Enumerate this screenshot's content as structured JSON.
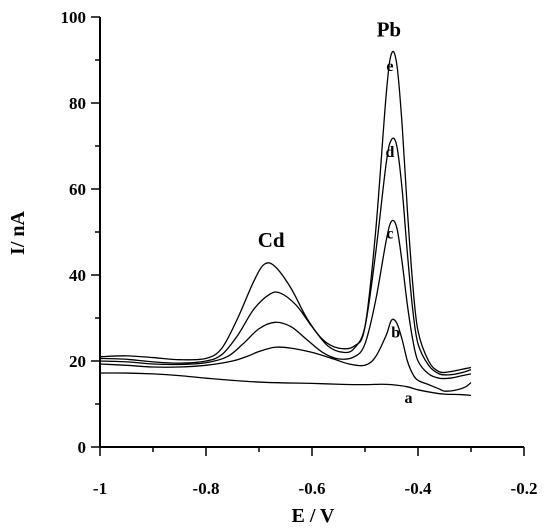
{
  "chart_data": {
    "type": "line",
    "title": "",
    "xlabel": "E / V",
    "ylabel": "I/ nA",
    "xlim": [
      -1.0,
      -0.2
    ],
    "ylim": [
      0,
      100
    ],
    "x_ticks": [
      -1.0,
      -0.8,
      -0.6,
      -0.4,
      -0.2
    ],
    "x_tick_labels": [
      "-1",
      "-0.8",
      "-0.6",
      "-0.4",
      "-0.2"
    ],
    "y_ticks": [
      0,
      20,
      40,
      60,
      80,
      100
    ],
    "y_tick_labels": [
      "0",
      "20",
      "40",
      "60",
      "80",
      "100"
    ],
    "grid": false,
    "series": [
      {
        "name": "a",
        "points": [
          [
            -1.0,
            17.2
          ],
          [
            -0.95,
            17.2
          ],
          [
            -0.9,
            17.0
          ],
          [
            -0.85,
            16.6
          ],
          [
            -0.8,
            16.0
          ],
          [
            -0.75,
            15.5
          ],
          [
            -0.7,
            15.1
          ],
          [
            -0.65,
            14.9
          ],
          [
            -0.6,
            14.8
          ],
          [
            -0.55,
            14.6
          ],
          [
            -0.5,
            14.5
          ],
          [
            -0.47,
            14.6
          ],
          [
            -0.45,
            14.5
          ],
          [
            -0.42,
            14.0
          ],
          [
            -0.4,
            13.3
          ],
          [
            -0.37,
            12.6
          ],
          [
            -0.35,
            12.3
          ],
          [
            -0.32,
            12.2
          ],
          [
            -0.3,
            12.0
          ]
        ]
      },
      {
        "name": "b",
        "points": [
          [
            -1.0,
            19.3
          ],
          [
            -0.95,
            19.0
          ],
          [
            -0.9,
            18.6
          ],
          [
            -0.85,
            18.6
          ],
          [
            -0.8,
            19.0
          ],
          [
            -0.75,
            20.0
          ],
          [
            -0.72,
            21.2
          ],
          [
            -0.7,
            22.2
          ],
          [
            -0.67,
            23.2
          ],
          [
            -0.64,
            23.0
          ],
          [
            -0.6,
            22.0
          ],
          [
            -0.56,
            20.5
          ],
          [
            -0.53,
            19.3
          ],
          [
            -0.5,
            19.0
          ],
          [
            -0.48,
            21.0
          ],
          [
            -0.46,
            26.0
          ],
          [
            -0.45,
            29.5
          ],
          [
            -0.44,
            28.8
          ],
          [
            -0.43,
            25.0
          ],
          [
            -0.42,
            20.0
          ],
          [
            -0.41,
            17.0
          ],
          [
            -0.4,
            15.5
          ],
          [
            -0.38,
            14.5
          ],
          [
            -0.36,
            13.5
          ],
          [
            -0.35,
            13.0
          ],
          [
            -0.33,
            13.2
          ],
          [
            -0.31,
            14.0
          ],
          [
            -0.3,
            15.0
          ]
        ]
      },
      {
        "name": "c",
        "points": [
          [
            -1.0,
            20.0
          ],
          [
            -0.95,
            19.8
          ],
          [
            -0.9,
            19.3
          ],
          [
            -0.85,
            19.2
          ],
          [
            -0.8,
            19.6
          ],
          [
            -0.76,
            21.0
          ],
          [
            -0.73,
            24.0
          ],
          [
            -0.7,
            27.5
          ],
          [
            -0.67,
            29.0
          ],
          [
            -0.64,
            28.0
          ],
          [
            -0.61,
            25.0
          ],
          [
            -0.58,
            22.0
          ],
          [
            -0.55,
            20.5
          ],
          [
            -0.52,
            21.0
          ],
          [
            -0.5,
            24.0
          ],
          [
            -0.48,
            34.0
          ],
          [
            -0.46,
            48.0
          ],
          [
            -0.45,
            52.5
          ],
          [
            -0.44,
            51.0
          ],
          [
            -0.43,
            43.0
          ],
          [
            -0.42,
            33.0
          ],
          [
            -0.41,
            25.0
          ],
          [
            -0.4,
            20.0
          ],
          [
            -0.38,
            17.0
          ],
          [
            -0.36,
            16.0
          ],
          [
            -0.34,
            16.0
          ],
          [
            -0.32,
            16.5
          ],
          [
            -0.3,
            17.0
          ]
        ]
      },
      {
        "name": "d",
        "points": [
          [
            -1.0,
            20.6
          ],
          [
            -0.95,
            20.4
          ],
          [
            -0.9,
            19.8
          ],
          [
            -0.85,
            19.5
          ],
          [
            -0.8,
            20.0
          ],
          [
            -0.77,
            21.5
          ],
          [
            -0.74,
            26.0
          ],
          [
            -0.71,
            32.0
          ],
          [
            -0.68,
            35.5
          ],
          [
            -0.66,
            35.8
          ],
          [
            -0.63,
            33.0
          ],
          [
            -0.6,
            28.0
          ],
          [
            -0.57,
            23.5
          ],
          [
            -0.54,
            22.0
          ],
          [
            -0.52,
            23.0
          ],
          [
            -0.5,
            28.0
          ],
          [
            -0.48,
            45.0
          ],
          [
            -0.46,
            66.0
          ],
          [
            -0.45,
            71.5
          ],
          [
            -0.44,
            70.0
          ],
          [
            -0.43,
            60.0
          ],
          [
            -0.42,
            45.0
          ],
          [
            -0.41,
            32.0
          ],
          [
            -0.4,
            24.0
          ],
          [
            -0.38,
            19.0
          ],
          [
            -0.36,
            17.0
          ],
          [
            -0.34,
            16.8
          ],
          [
            -0.32,
            17.2
          ],
          [
            -0.3,
            18.0
          ]
        ]
      },
      {
        "name": "e",
        "points": [
          [
            -1.0,
            21.0
          ],
          [
            -0.95,
            21.2
          ],
          [
            -0.9,
            20.8
          ],
          [
            -0.85,
            20.3
          ],
          [
            -0.8,
            20.6
          ],
          [
            -0.77,
            23.0
          ],
          [
            -0.74,
            30.0
          ],
          [
            -0.71,
            38.5
          ],
          [
            -0.69,
            42.5
          ],
          [
            -0.67,
            42.0
          ],
          [
            -0.64,
            37.0
          ],
          [
            -0.61,
            30.0
          ],
          [
            -0.58,
            25.0
          ],
          [
            -0.55,
            23.0
          ],
          [
            -0.52,
            23.5
          ],
          [
            -0.5,
            28.0
          ],
          [
            -0.48,
            50.0
          ],
          [
            -0.46,
            82.0
          ],
          [
            -0.45,
            91.5
          ],
          [
            -0.44,
            89.0
          ],
          [
            -0.43,
            75.0
          ],
          [
            -0.42,
            55.0
          ],
          [
            -0.41,
            38.0
          ],
          [
            -0.4,
            27.0
          ],
          [
            -0.38,
            20.0
          ],
          [
            -0.36,
            17.5
          ],
          [
            -0.34,
            17.5
          ],
          [
            -0.32,
            18.0
          ],
          [
            -0.3,
            18.5
          ]
        ]
      }
    ],
    "annotations": [
      {
        "text": "Pb",
        "x": -0.455,
        "y": 95.5,
        "size": "large"
      },
      {
        "text": "Cd",
        "x": -0.677,
        "y": 46.5,
        "size": "large"
      },
      {
        "text": "e",
        "x": -0.453,
        "y": 87.5,
        "size": "small"
      },
      {
        "text": "d",
        "x": -0.453,
        "y": 67.5,
        "size": "small"
      },
      {
        "text": "c",
        "x": -0.453,
        "y": 48.5,
        "size": "small"
      },
      {
        "text": "b",
        "x": -0.442,
        "y": 25.5,
        "size": "small"
      },
      {
        "text": "a",
        "x": -0.418,
        "y": 10.2,
        "size": "small"
      }
    ]
  }
}
